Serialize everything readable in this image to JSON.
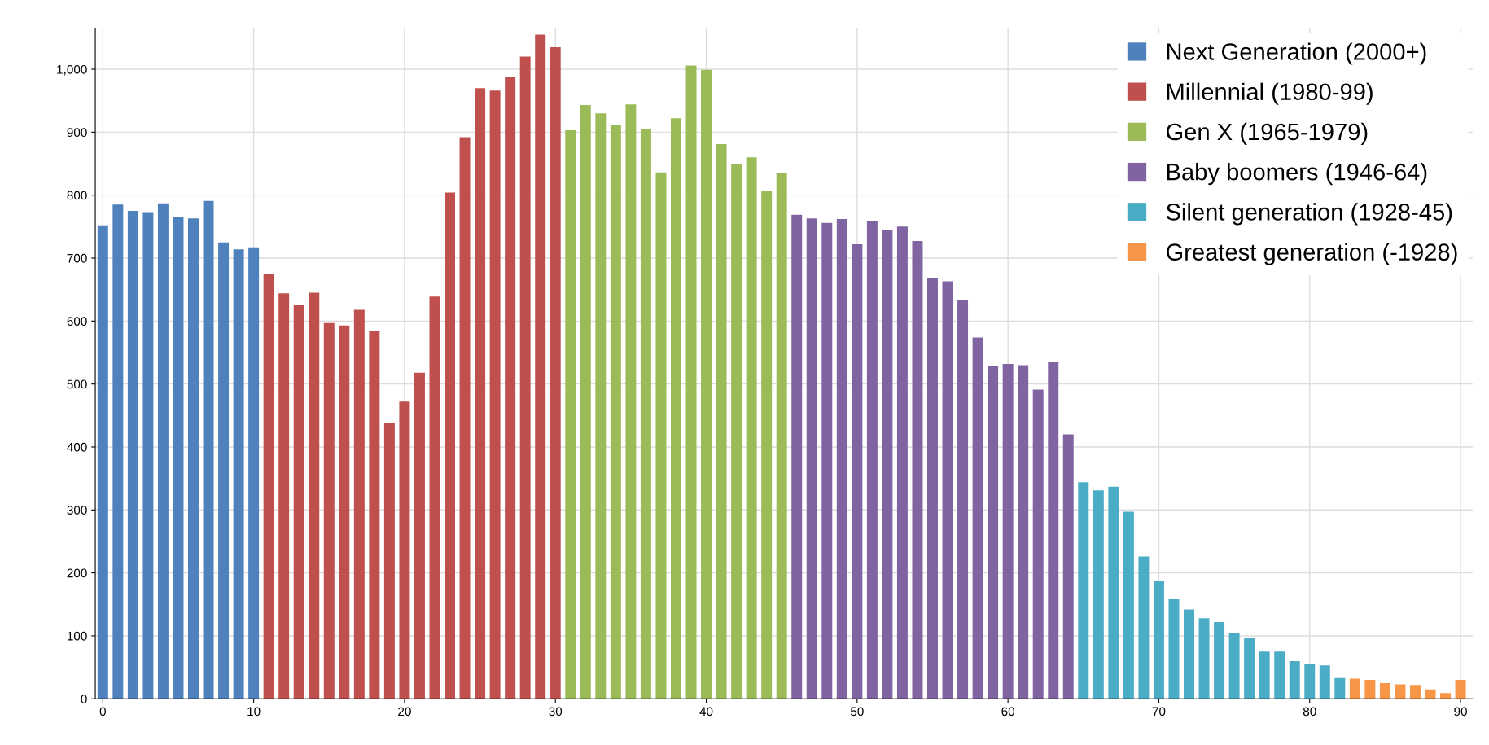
{
  "chart_data": {
    "type": "bar",
    "series": [
      {
        "name": "Next Generation (2000+)",
        "color": "#4f81bd",
        "x": [
          0,
          1,
          2,
          3,
          4,
          5,
          6,
          7,
          8,
          9,
          10
        ],
        "values": [
          752,
          785,
          775,
          773,
          787,
          766,
          763,
          791,
          725,
          714,
          717
        ]
      },
      {
        "name": "Millennial (1980-99)",
        "color": "#c0504d",
        "x": [
          11,
          12,
          13,
          14,
          15,
          16,
          17,
          18,
          19,
          20,
          21,
          22,
          23,
          24,
          25,
          26,
          27,
          28,
          29,
          30
        ],
        "values": [
          674,
          644,
          626,
          645,
          597,
          593,
          618,
          585,
          438,
          472,
          518,
          639,
          804,
          892,
          970,
          966,
          988,
          1020,
          1055,
          1035
        ]
      },
      {
        "name": "Gen X (1965-1979)",
        "color": "#9bbb59",
        "x": [
          31,
          32,
          33,
          34,
          35,
          36,
          37,
          38,
          39,
          40,
          41,
          42,
          43,
          44,
          45
        ],
        "values": [
          903,
          943,
          930,
          912,
          944,
          905,
          836,
          922,
          1006,
          999,
          881,
          849,
          860,
          806,
          835
        ]
      },
      {
        "name": "Baby boomers (1946-64)",
        "color": "#8064a2",
        "x": [
          46,
          47,
          48,
          49,
          50,
          51,
          52,
          53,
          54,
          55,
          56,
          57,
          58,
          59,
          60,
          61,
          62,
          63,
          64
        ],
        "values": [
          769,
          763,
          756,
          762,
          722,
          759,
          745,
          750,
          727,
          669,
          663,
          633,
          574,
          528,
          532,
          530,
          491,
          535,
          420
        ]
      },
      {
        "name": "Silent generation (1928-45)",
        "color": "#4bacc6",
        "x": [
          65,
          66,
          67,
          68,
          69,
          70,
          71,
          72,
          73,
          74,
          75,
          76,
          77,
          78,
          79,
          80,
          81,
          82
        ],
        "values": [
          344,
          331,
          337,
          297,
          226,
          188,
          158,
          142,
          128,
          122,
          104,
          96,
          75,
          75,
          60,
          56,
          53,
          33
        ]
      },
      {
        "name": "Greatest generation (-1928)",
        "color": "#f79646",
        "x": [
          83,
          84,
          85,
          86,
          87,
          88,
          89,
          90
        ],
        "values": [
          32,
          30,
          25,
          23,
          22,
          15,
          9,
          30
        ]
      }
    ],
    "xlim": [
      -0.5,
      90.8
    ],
    "xticks": [
      0,
      10,
      20,
      30,
      40,
      50,
      60,
      70,
      80,
      90
    ],
    "ylim": [
      0,
      1065
    ],
    "yticks": [
      0,
      100,
      200,
      300,
      400,
      500,
      600,
      700,
      800,
      900,
      {
        "value": 1000,
        "label": "1,000"
      }
    ],
    "grid": true,
    "legend": "top right"
  }
}
